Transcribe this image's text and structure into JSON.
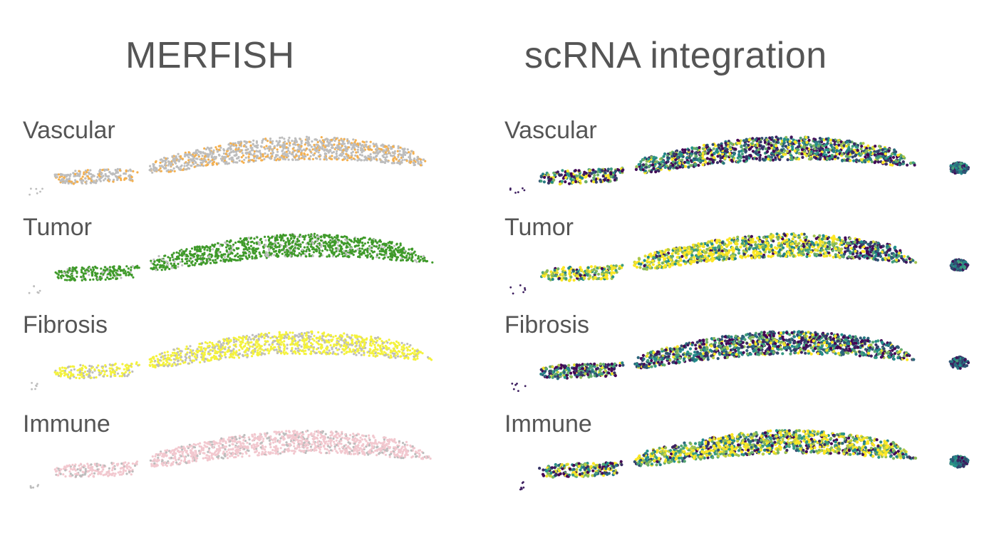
{
  "titles": {
    "left": "MERFISH",
    "right": "scRNA integration"
  },
  "rows": [
    {
      "label": "Vascular",
      "merfish_color": "#f5b04e",
      "merfish_fraction": 0.25,
      "scrna_high_fraction": 0.25
    },
    {
      "label": "Tumor",
      "merfish_color": "#3f9a2a",
      "merfish_fraction": 0.85,
      "scrna_high_fraction": 0.55
    },
    {
      "label": "Fibrosis",
      "merfish_color": "#f4f23c",
      "merfish_fraction": 0.7,
      "scrna_high_fraction": 0.2
    },
    {
      "label": "Immune",
      "merfish_color": "#f2c8cf",
      "merfish_fraction": 0.8,
      "scrna_high_fraction": 0.5
    }
  ],
  "colors": {
    "background_points": "#bdbdbd",
    "viridis_low": "#440154",
    "viridis_mid": "#21918c",
    "viridis_high": "#fde725"
  }
}
